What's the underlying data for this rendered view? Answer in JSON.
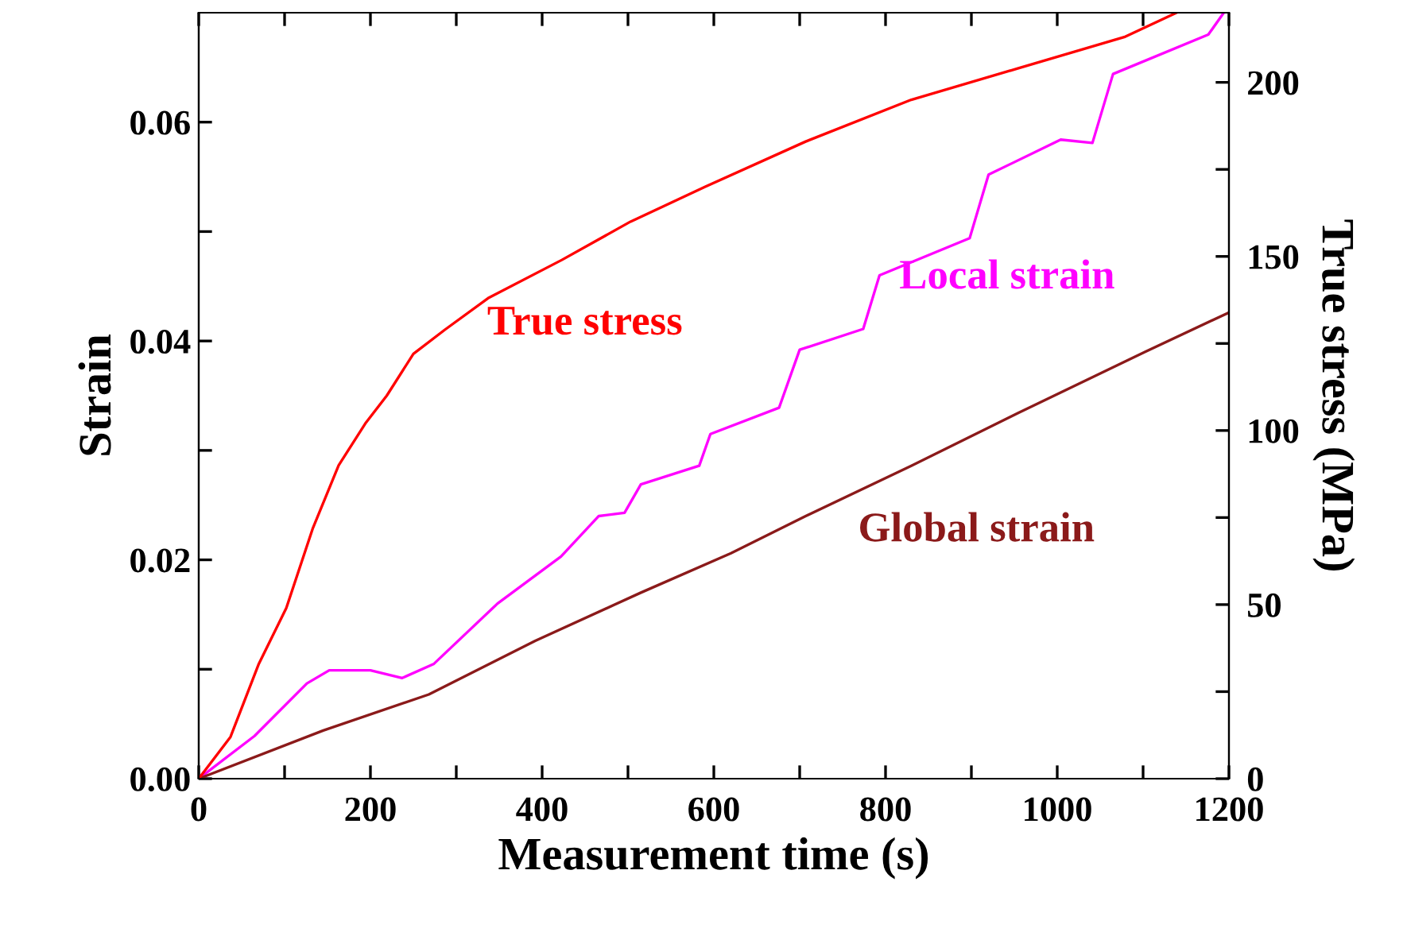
{
  "chart_data": {
    "type": "line",
    "xlabel": "Measurement time (s)",
    "ylabel": "Strain",
    "y2label": "True stress (MPa)",
    "xlim": [
      0,
      1200
    ],
    "xticks": [
      0,
      {
        "value": 100,
        "label": null
      },
      200,
      {
        "value": 300,
        "label": null
      },
      400,
      {
        "value": 500,
        "label": null
      },
      600,
      {
        "value": 700,
        "label": null
      },
      800,
      {
        "value": 900,
        "label": null
      },
      1000,
      {
        "value": 1100,
        "label": null
      },
      1200
    ],
    "ylim": [
      0,
      0.07
    ],
    "yticks": [
      {
        "value": 0,
        "label": "0.00"
      },
      {
        "value": 0.01,
        "label": null
      },
      0.02,
      {
        "value": 0.03,
        "label": null
      },
      0.04,
      {
        "value": 0.05,
        "label": null
      },
      0.06
    ],
    "y2lim": [
      0,
      220
    ],
    "y2ticks": [
      0,
      {
        "value": 25,
        "label": null
      },
      50,
      {
        "value": 75,
        "label": null
      },
      100,
      {
        "value": 125,
        "label": null
      },
      150,
      {
        "value": 175,
        "label": null
      },
      200
    ],
    "grid": false,
    "legend": false,
    "marker": "none",
    "line_style": "solid",
    "series": [
      {
        "name": "True stress",
        "color": "#ff0000",
        "axis": "y2",
        "x": [
          0,
          37,
          70,
          102,
          133,
          163,
          194,
          219,
          250,
          287,
          337,
          423,
          503,
          590,
          707,
          830,
          954,
          1078,
          1139
        ],
        "values": [
          0,
          12,
          33,
          49,
          72,
          90,
          102,
          110,
          122,
          129,
          138,
          149,
          160,
          170,
          183,
          195,
          204,
          213,
          220
        ]
      },
      {
        "name": "Local strain",
        "color": "#ff00ff",
        "x": [
          0,
          65,
          126,
          152,
          200,
          237,
          274,
          348,
          422,
          466,
          496,
          515,
          583,
          596,
          676,
          700,
          774,
          793,
          898,
          920,
          1004,
          1041,
          1065,
          1176,
          1194
        ],
        "values": [
          0,
          0.0039,
          0.0087,
          0.0099,
          0.0099,
          0.0092,
          0.0105,
          0.016,
          0.0203,
          0.024,
          0.0243,
          0.0269,
          0.0286,
          0.0315,
          0.0339,
          0.0392,
          0.0411,
          0.046,
          0.0494,
          0.0552,
          0.0584,
          0.0581,
          0.0644,
          0.068,
          0.07
        ]
      },
      {
        "name": "Global strain",
        "color": "#8b1a1a",
        "x": [
          0,
          145,
          268,
          392,
          515,
          620,
          707,
          830,
          954,
          1102,
          1200
        ],
        "values": [
          0,
          0.0044,
          0.0077,
          0.0126,
          0.017,
          0.0206,
          0.024,
          0.0286,
          0.0334,
          0.039,
          0.0426
        ]
      }
    ]
  }
}
